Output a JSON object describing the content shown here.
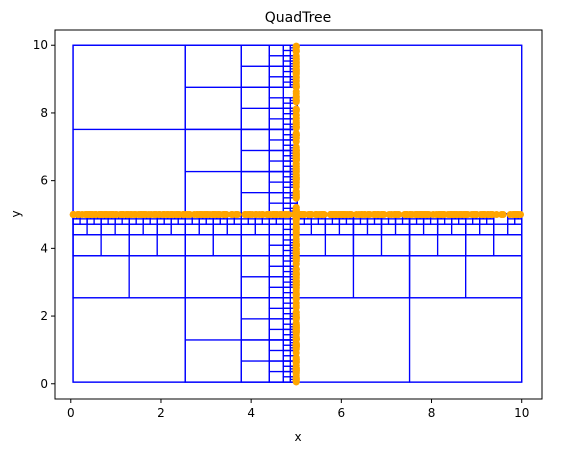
{
  "chart_data": {
    "type": "scatter",
    "title": "QuadTree",
    "xlabel": "x",
    "ylabel": "y",
    "xlim": [
      -0.35,
      10.45
    ],
    "ylim": [
      -0.45,
      10.45
    ],
    "xticks": [
      0,
      2,
      4,
      6,
      8,
      10
    ],
    "yticks": [
      0,
      2,
      4,
      6,
      8,
      10
    ],
    "grid": false,
    "colors": {
      "boxes": "#0000ff",
      "points": "#ffa500"
    },
    "root_box": [
      0.05,
      0.05,
      10.0,
      10.0
    ],
    "series": [
      {
        "kind": "points",
        "distribution": "points along the lines y = 5 and x = 5",
        "horizontal_line": {
          "y": 5.0,
          "x_range": [
            0.05,
            10.0
          ]
        },
        "vertical_line": {
          "x": 5.0,
          "y_range": [
            0.05,
            10.0
          ]
        }
      }
    ]
  }
}
